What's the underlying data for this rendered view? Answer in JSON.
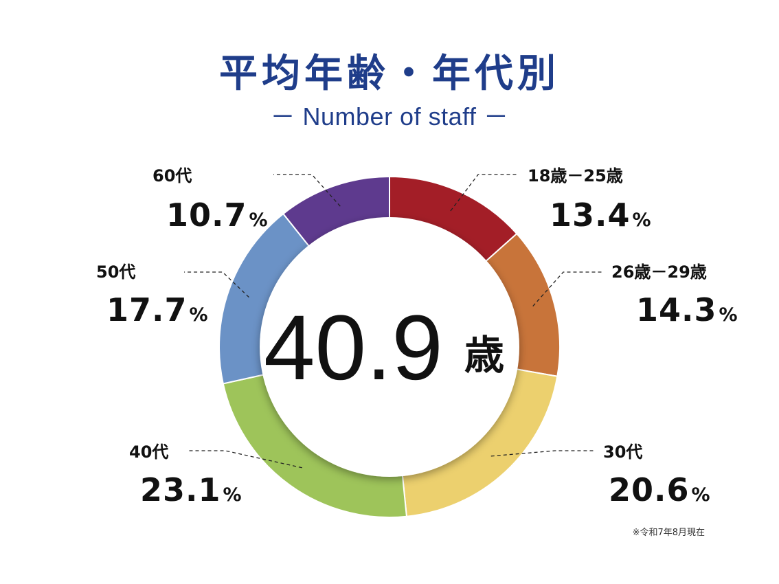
{
  "header": {
    "title": "平均年齢・年代別",
    "subtitle": "－ Number of staff －"
  },
  "center": {
    "value": "40.9",
    "unit": "歳"
  },
  "note": "※令和7年8月現在",
  "percent_sign": "%",
  "chart_data": {
    "type": "pie",
    "categories": [
      "18歳－25歳",
      "26歳－29歳",
      "30代",
      "40代",
      "50代",
      "60代"
    ],
    "values": [
      13.4,
      14.3,
      20.6,
      23.1,
      17.7,
      10.7
    ],
    "value_labels": [
      "13.4",
      "14.3",
      "20.6",
      "23.1",
      "17.7",
      "10.7"
    ],
    "colors": [
      "#a31e27",
      "#c8743a",
      "#ecd06e",
      "#9ec45a",
      "#6b92c6",
      "#5e3a8e"
    ]
  }
}
